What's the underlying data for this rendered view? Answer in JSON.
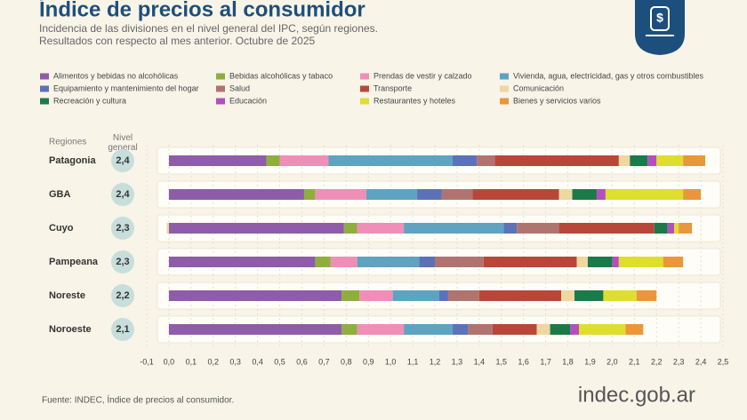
{
  "chart_data": {
    "type": "stacked_barh",
    "title": "Índice de precios al consumidor",
    "subtitle": [
      "Incidencia de las divisiones en el nivel general del IPC, según regiones.",
      "Resultados con respecto al mes anterior. Octubre de 2025"
    ],
    "category_header": "Regiones",
    "level_header": "Nivel general",
    "categories": [
      "Patagonia",
      "GBA",
      "Cuyo",
      "Pampeana",
      "Noreste",
      "Noroeste"
    ],
    "general_levels": [
      {
        "value": 2.4,
        "label": "2,4"
      },
      {
        "value": 2.4,
        "label": "2,4"
      },
      {
        "value": 2.3,
        "label": "2,3"
      },
      {
        "value": 2.3,
        "label": "2,3"
      },
      {
        "value": 2.2,
        "label": "2,2"
      },
      {
        "value": 2.1,
        "label": "2,1"
      }
    ],
    "series": [
      {
        "name": "Alimentos y bebidas no alcohólicas",
        "color": "#8e5ca8",
        "values": [
          0.44,
          0.61,
          0.79,
          0.66,
          0.78,
          0.78
        ]
      },
      {
        "name": "Bebidas alcohólicas y tabaco",
        "color": "#8fae3e",
        "values": [
          0.06,
          0.05,
          0.06,
          0.07,
          0.08,
          0.07
        ]
      },
      {
        "name": "Prendas de vestir y calzado",
        "color": "#ef8fb8",
        "values": [
          0.22,
          0.23,
          0.21,
          0.12,
          0.15,
          0.21
        ]
      },
      {
        "name": "Vivienda, agua, electricidad, gas y otros combustibles",
        "color": "#5ea3c0",
        "values": [
          0.56,
          0.23,
          0.45,
          0.28,
          0.21,
          0.22
        ]
      },
      {
        "name": "Equipamiento y mantenimiento del hogar",
        "color": "#5b72b8",
        "values": [
          0.11,
          0.11,
          0.06,
          0.07,
          0.04,
          0.07
        ]
      },
      {
        "name": "Salud",
        "color": "#b07470",
        "values": [
          0.08,
          0.14,
          0.19,
          0.22,
          0.14,
          0.11
        ]
      },
      {
        "name": "Transporte",
        "color": "#b8473a",
        "values": [
          0.56,
          0.39,
          0.43,
          0.42,
          0.37,
          0.2
        ]
      },
      {
        "name": "Comunicación",
        "color": "#eed7a0",
        "values": [
          0.05,
          0.06,
          -0.01,
          0.05,
          0.06,
          0.06
        ]
      },
      {
        "name": "Recreación y cultura",
        "color": "#1a7a4a",
        "values": [
          0.08,
          0.11,
          0.06,
          0.11,
          0.13,
          0.09
        ]
      },
      {
        "name": "Educación",
        "color": "#b44fbf",
        "values": [
          0.04,
          0.04,
          0.03,
          0.03,
          0,
          0.04
        ]
      },
      {
        "name": "Restaurantes y hoteles",
        "color": "#dede2e",
        "values": [
          0.12,
          0.35,
          0.02,
          0.2,
          0.15,
          0.21
        ]
      },
      {
        "name": "Bienes y servicios varios",
        "color": "#e9973a",
        "values": [
          0.1,
          0.08,
          0.06,
          0.09,
          0.09,
          0.08
        ]
      }
    ],
    "xlim": [
      -0.1,
      2.5
    ],
    "xticks": [
      {
        "value": -0.1,
        "label": "-0,1"
      },
      {
        "value": 0,
        "label": "0,0"
      },
      {
        "value": 0.1,
        "label": "0,1"
      },
      {
        "value": 0.2,
        "label": "0,2"
      },
      {
        "value": 0.3,
        "label": "0,3"
      },
      {
        "value": 0.4,
        "label": "0,4"
      },
      {
        "value": 0.5,
        "label": "0,5"
      },
      {
        "value": 0.6,
        "label": "0,6"
      },
      {
        "value": 0.7,
        "label": "0,7"
      },
      {
        "value": 0.8,
        "label": "0,8"
      },
      {
        "value": 0.9,
        "label": "0,9"
      },
      {
        "value": 1,
        "label": "1,0"
      },
      {
        "value": 1.1,
        "label": "1,1"
      },
      {
        "value": 1.2,
        "label": "1,2"
      },
      {
        "value": 1.3,
        "label": "1,3"
      },
      {
        "value": 1.4,
        "label": "1,4"
      },
      {
        "value": 1.5,
        "label": "1,5"
      },
      {
        "value": 1.6,
        "label": "1,6"
      },
      {
        "value": 1.7,
        "label": "1,7"
      },
      {
        "value": 1.8,
        "label": "1,8"
      },
      {
        "value": 1.9,
        "label": "1,9"
      },
      {
        "value": 2,
        "label": "2,0"
      },
      {
        "value": 2.1,
        "label": "2,1"
      },
      {
        "value": 2.2,
        "label": "2,2"
      },
      {
        "value": 2.3,
        "label": "2,3"
      },
      {
        "value": 2.4,
        "label": "2,4"
      },
      {
        "value": 2.5,
        "label": "2,5"
      }
    ],
    "grid": true,
    "source": "Fuente: INDEC, Índice de precios al consumidor.",
    "logo": "indec.gob.ar"
  }
}
